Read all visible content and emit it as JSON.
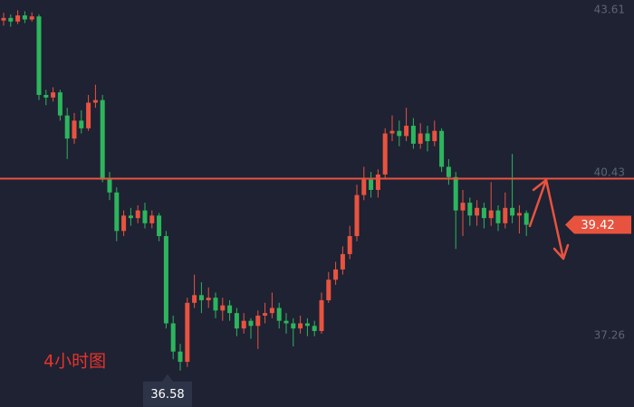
{
  "chart_data": {
    "type": "candlestick",
    "title": "4小时图",
    "ylim": [
      35.87,
      43.8
    ],
    "yticks": [
      43.61,
      40.43,
      37.26
    ],
    "grid": false,
    "colors": {
      "up": "#e8533f",
      "down": "#2db55d",
      "level": "#e8533f"
    },
    "level_line": 40.32,
    "candles": [
      [
        43.4,
        43.55,
        43.3,
        43.45
      ],
      [
        43.45,
        43.52,
        43.28,
        43.38
      ],
      [
        43.38,
        43.6,
        43.33,
        43.5
      ],
      [
        43.5,
        43.58,
        43.35,
        43.42
      ],
      [
        43.42,
        43.56,
        43.38,
        43.48
      ],
      [
        43.48,
        43.52,
        41.85,
        41.95
      ],
      [
        41.95,
        42.05,
        41.75,
        41.9
      ],
      [
        41.9,
        42.1,
        41.82,
        42.0
      ],
      [
        42.0,
        42.05,
        41.45,
        41.55
      ],
      [
        41.55,
        41.7,
        40.7,
        41.1
      ],
      [
        41.1,
        41.6,
        41.0,
        41.45
      ],
      [
        41.45,
        41.65,
        41.2,
        41.3
      ],
      [
        41.3,
        41.95,
        41.25,
        41.8
      ],
      [
        41.8,
        42.15,
        41.7,
        41.85
      ],
      [
        41.85,
        41.95,
        40.25,
        40.3
      ],
      [
        40.3,
        40.45,
        39.9,
        40.05
      ],
      [
        40.05,
        40.15,
        39.1,
        39.3
      ],
      [
        39.3,
        39.7,
        39.2,
        39.6
      ],
      [
        39.6,
        39.75,
        39.4,
        39.55
      ],
      [
        39.55,
        39.8,
        39.45,
        39.7
      ],
      [
        39.7,
        39.85,
        39.35,
        39.45
      ],
      [
        39.45,
        39.7,
        39.35,
        39.6
      ],
      [
        39.6,
        39.65,
        39.1,
        39.2
      ],
      [
        39.2,
        39.3,
        37.4,
        37.5
      ],
      [
        37.5,
        37.65,
        36.8,
        36.95
      ],
      [
        36.95,
        37.1,
        36.58,
        36.75
      ],
      [
        36.75,
        38.0,
        36.65,
        37.9
      ],
      [
        37.9,
        38.45,
        37.8,
        38.05
      ],
      [
        38.05,
        38.3,
        37.7,
        37.95
      ],
      [
        37.95,
        38.2,
        37.8,
        38.0
      ],
      [
        38.0,
        38.1,
        37.6,
        37.75
      ],
      [
        37.75,
        38.0,
        37.55,
        37.85
      ],
      [
        37.85,
        37.95,
        37.55,
        37.7
      ],
      [
        37.7,
        37.8,
        37.25,
        37.4
      ],
      [
        37.4,
        37.7,
        37.3,
        37.55
      ],
      [
        37.55,
        37.6,
        37.2,
        37.45
      ],
      [
        37.45,
        37.75,
        37.0,
        37.65
      ],
      [
        37.65,
        37.9,
        37.5,
        37.7
      ],
      [
        37.7,
        38.1,
        37.6,
        37.8
      ],
      [
        37.8,
        37.9,
        37.4,
        37.55
      ],
      [
        37.55,
        37.7,
        37.3,
        37.5
      ],
      [
        37.5,
        37.6,
        37.05,
        37.4
      ],
      [
        37.4,
        37.65,
        37.3,
        37.5
      ],
      [
        37.5,
        37.6,
        37.25,
        37.45
      ],
      [
        37.45,
        37.55,
        37.25,
        37.35
      ],
      [
        37.35,
        38.1,
        37.3,
        37.95
      ],
      [
        37.95,
        38.5,
        37.9,
        38.35
      ],
      [
        38.35,
        38.7,
        38.25,
        38.55
      ],
      [
        38.55,
        39.0,
        38.45,
        38.85
      ],
      [
        38.85,
        39.4,
        38.75,
        39.2
      ],
      [
        39.2,
        40.2,
        39.1,
        40.0
      ],
      [
        40.0,
        40.55,
        39.9,
        40.3
      ],
      [
        40.3,
        40.45,
        39.95,
        40.1
      ],
      [
        40.1,
        40.5,
        39.95,
        40.4
      ],
      [
        40.4,
        41.3,
        40.3,
        41.2
      ],
      [
        41.2,
        41.55,
        41.05,
        41.25
      ],
      [
        41.25,
        41.45,
        40.95,
        41.15
      ],
      [
        41.15,
        41.7,
        41.05,
        41.35
      ],
      [
        41.35,
        41.5,
        40.9,
        41.0
      ],
      [
        41.0,
        41.4,
        40.9,
        41.2
      ],
      [
        41.2,
        41.35,
        40.85,
        41.05
      ],
      [
        41.05,
        41.45,
        40.95,
        41.25
      ],
      [
        41.25,
        41.3,
        40.45,
        40.55
      ],
      [
        40.55,
        40.7,
        40.2,
        40.35
      ],
      [
        40.35,
        40.45,
        38.95,
        39.7
      ],
      [
        39.7,
        40.1,
        39.2,
        39.85
      ],
      [
        39.85,
        39.95,
        39.4,
        39.6
      ],
      [
        39.6,
        39.9,
        39.4,
        39.75
      ],
      [
        39.75,
        39.85,
        39.35,
        39.55
      ],
      [
        39.55,
        40.25,
        39.4,
        39.7
      ],
      [
        39.7,
        39.8,
        39.3,
        39.45
      ],
      [
        39.45,
        40.05,
        39.35,
        39.75
      ],
      [
        39.75,
        40.8,
        39.45,
        39.6
      ],
      [
        39.6,
        39.8,
        39.25,
        39.65
      ],
      [
        39.65,
        39.7,
        39.2,
        39.42
      ]
    ]
  }
}
